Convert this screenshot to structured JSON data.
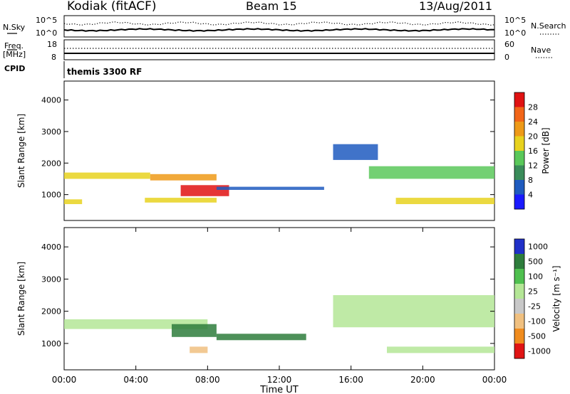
{
  "header": {
    "station": "Kodiak (fitACF)",
    "beam": "Beam 15",
    "date": "13/Aug/2011"
  },
  "noise_panel": {
    "left_label": "N.Sky",
    "right_label": "N.Search",
    "left_ticks": [
      "10^5",
      "10^0"
    ],
    "right_ticks": [
      "10^5",
      "10^0"
    ]
  },
  "freq_panel": {
    "left_label_1": "Freq.",
    "left_label_2": "[MHz]",
    "right_label": "Nave",
    "left_ticks": [
      "18",
      "8"
    ],
    "right_ticks": [
      "60",
      "0"
    ]
  },
  "cpid": {
    "label": "CPID",
    "value": "themis 3300 RF"
  },
  "chart_data": [
    {
      "type": "heatmap",
      "panel": "power",
      "ylabel": "Slant Range [km]",
      "ylim": [
        180,
        4600
      ],
      "yticks": [
        "1000",
        "2000",
        "3000",
        "4000"
      ],
      "colorbar_label": "Power [dB]",
      "colorbar_ticks": [
        "4",
        "8",
        "12",
        "16",
        "20",
        "24",
        "28"
      ],
      "colorbar_colors": [
        "#1a1aff",
        "#1f5bbf",
        "#3a8c5a",
        "#5ac85a",
        "#e8d21e",
        "#ee9a18",
        "#f26518",
        "#e01212"
      ],
      "echo_bands": [
        {
          "t_start": 0.0,
          "t_end": 4.8,
          "range_km": [
            1500,
            1700
          ],
          "power_db": 16
        },
        {
          "t_start": 4.8,
          "t_end": 8.5,
          "range_km": [
            1450,
            1650
          ],
          "power_db": 20
        },
        {
          "t_start": 6.5,
          "t_end": 9.2,
          "range_km": [
            950,
            1300
          ],
          "power_db": 28
        },
        {
          "t_start": 8.5,
          "t_end": 14.5,
          "range_km": [
            1150,
            1250
          ],
          "power_db": 6
        },
        {
          "t_start": 0.0,
          "t_end": 1.0,
          "range_km": [
            700,
            850
          ],
          "power_db": 18
        },
        {
          "t_start": 4.5,
          "t_end": 8.5,
          "range_km": [
            750,
            900
          ],
          "power_db": 18
        },
        {
          "t_start": 15.0,
          "t_end": 17.5,
          "range_km": [
            2100,
            2600
          ],
          "power_db": 6
        },
        {
          "t_start": 17.0,
          "t_end": 24.0,
          "range_km": [
            1500,
            1900
          ],
          "power_db": 12
        },
        {
          "t_start": 18.5,
          "t_end": 24.0,
          "range_km": [
            700,
            900
          ],
          "power_db": 16
        }
      ]
    },
    {
      "type": "heatmap",
      "panel": "velocity",
      "xlabel": "Time UT",
      "ylabel": "Slant Range [km]",
      "xlim": [
        0,
        24
      ],
      "ylim": [
        180,
        4600
      ],
      "xticks": [
        "00:00",
        "04:00",
        "08:00",
        "12:00",
        "16:00",
        "20:00",
        "00:00"
      ],
      "yticks": [
        "1000",
        "2000",
        "3000",
        "4000"
      ],
      "colorbar_label": "Velocity [m s⁻¹]",
      "colorbar_ticks": [
        "1000",
        "500",
        "100",
        "25",
        "-25",
        "-100",
        "-500",
        "-1000"
      ],
      "colorbar_colors": [
        "#2030c8",
        "#2e7d3c",
        "#4fc04f",
        "#b4e696",
        "#c8c8c8",
        "#f0c080",
        "#f08c1e",
        "#e01414"
      ],
      "echo_bands": [
        {
          "t_start": 0.0,
          "t_end": 8.0,
          "range_km": [
            1450,
            1750
          ],
          "velocity": 0
        },
        {
          "t_start": 6.0,
          "t_end": 8.5,
          "range_km": [
            1200,
            1600
          ],
          "velocity": 150
        },
        {
          "t_start": 8.5,
          "t_end": 13.5,
          "range_km": [
            1100,
            1300
          ],
          "velocity": 120
        },
        {
          "t_start": 7.0,
          "t_end": 8.0,
          "range_km": [
            700,
            900
          ],
          "velocity": -300
        },
        {
          "t_start": 15.0,
          "t_end": 24.0,
          "range_km": [
            1500,
            2500
          ],
          "velocity": 0
        },
        {
          "t_start": 18.0,
          "t_end": 24.0,
          "range_km": [
            700,
            900
          ],
          "velocity": 0
        }
      ]
    }
  ]
}
